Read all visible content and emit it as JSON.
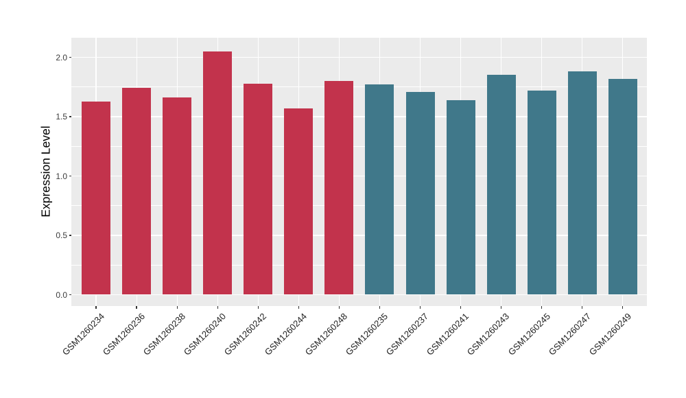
{
  "chart_data": {
    "type": "bar",
    "title": "",
    "xlabel": "",
    "ylabel": "Expression Level",
    "ylim": [
      -0.09,
      2.17
    ],
    "legend": "none",
    "grid": "ggplot2-style: white major + minor horizontal gridlines, white vertical gridlines at each category, grey panel",
    "panel_background": "#EBEBEB",
    "grid_color": "#FFFFFF",
    "y_ticks": [
      {
        "label": "0.0",
        "value": 0.0
      },
      {
        "label": "0.5",
        "value": 0.5
      },
      {
        "label": "1.0",
        "value": 1.0
      },
      {
        "label": "1.5",
        "value": 1.5
      },
      {
        "label": "2.0",
        "value": 2.0
      }
    ],
    "y_minor_ticks": [
      0.25,
      0.75,
      1.25,
      1.75
    ],
    "groups": [
      {
        "name": "group-red",
        "color": "#C2334C"
      },
      {
        "name": "group-teal",
        "color": "#40788A"
      }
    ],
    "categories": [
      "GSM1260234",
      "GSM1260236",
      "GSM1260238",
      "GSM1260240",
      "GSM1260242",
      "GSM1260244",
      "GSM1260248",
      "GSM1260235",
      "GSM1260237",
      "GSM1260241",
      "GSM1260243",
      "GSM1260245",
      "GSM1260247",
      "GSM1260249"
    ],
    "bars": [
      {
        "label": "GSM1260234",
        "value": 1.63,
        "group": "group-red"
      },
      {
        "label": "GSM1260236",
        "value": 1.74,
        "group": "group-red"
      },
      {
        "label": "GSM1260238",
        "value": 1.66,
        "group": "group-red"
      },
      {
        "label": "GSM1260240",
        "value": 2.05,
        "group": "group-red"
      },
      {
        "label": "GSM1260242",
        "value": 1.78,
        "group": "group-red"
      },
      {
        "label": "GSM1260244",
        "value": 1.57,
        "group": "group-red"
      },
      {
        "label": "GSM1260248",
        "value": 1.8,
        "group": "group-red"
      },
      {
        "label": "GSM1260235",
        "value": 1.77,
        "group": "group-teal"
      },
      {
        "label": "GSM1260237",
        "value": 1.71,
        "group": "group-teal"
      },
      {
        "label": "GSM1260241",
        "value": 1.64,
        "group": "group-teal"
      },
      {
        "label": "GSM1260243",
        "value": 1.85,
        "group": "group-teal"
      },
      {
        "label": "GSM1260245",
        "value": 1.72,
        "group": "group-teal"
      },
      {
        "label": "GSM1260247",
        "value": 1.88,
        "group": "group-teal"
      },
      {
        "label": "GSM1260249",
        "value": 1.82,
        "group": "group-teal"
      }
    ]
  }
}
